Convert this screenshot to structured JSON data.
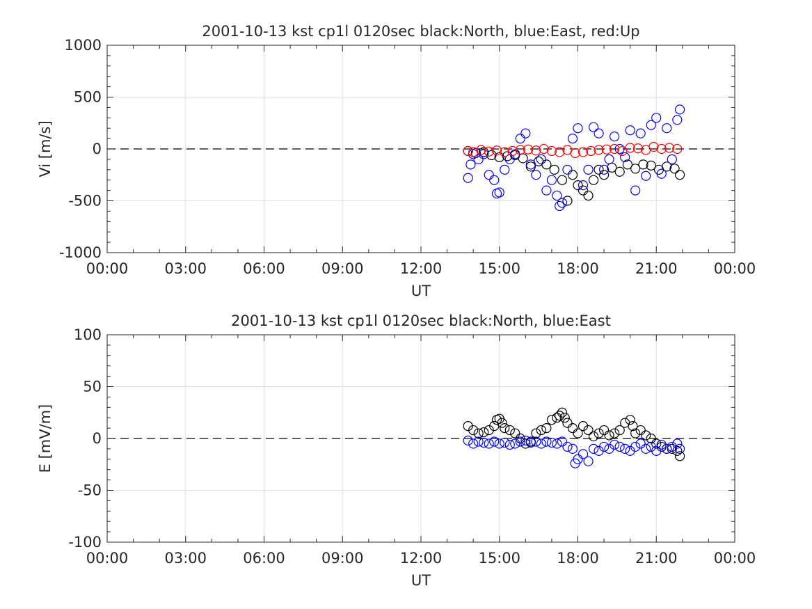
{
  "chart_data": [
    {
      "type": "scatter",
      "title": "2001-10-13 kst cp1l 0120sec black:North, blue:East, red:Up",
      "xlabel": "UT",
      "ylabel": "Vi [m/s]",
      "xlim": [
        "00:00",
        "24:00"
      ],
      "ylim": [
        -1000,
        1000
      ],
      "xticks": [
        "00:00",
        "03:00",
        "06:00",
        "09:00",
        "12:00",
        "15:00",
        "18:00",
        "21:00",
        "00:00"
      ],
      "yticks": [
        "-1000",
        "-500",
        "0",
        "500",
        "1000"
      ],
      "grid": true,
      "reference_line": 0,
      "marker": "open-circle",
      "x_unit": "hours UT",
      "series": [
        {
          "color": "#000000",
          "x": [
            13.8,
            14.1,
            14.4,
            14.7,
            15.0,
            15.3,
            15.6,
            15.9,
            16.2,
            16.5,
            16.8,
            17.1,
            17.4,
            17.6,
            17.8,
            18.0,
            18.2,
            18.4,
            18.6,
            18.8,
            19.0,
            19.3,
            19.6,
            19.9,
            20.2,
            20.5,
            20.8,
            21.1,
            21.4,
            21.7,
            21.9
          ],
          "y": [
            -20,
            -40,
            -30,
            -60,
            -80,
            -70,
            -60,
            -90,
            -170,
            -120,
            -150,
            -200,
            -300,
            -500,
            -250,
            -350,
            -400,
            -450,
            -300,
            -200,
            -250,
            -180,
            -220,
            -150,
            -190,
            -150,
            -160,
            -200,
            -170,
            -190,
            -250
          ]
        },
        {
          "color": "#0000ff",
          "x": [
            13.8,
            13.9,
            14.0,
            14.2,
            14.4,
            14.6,
            14.8,
            14.9,
            15.0,
            15.2,
            15.4,
            15.6,
            15.8,
            16.0,
            16.2,
            16.4,
            16.6,
            16.8,
            17.0,
            17.2,
            17.3,
            17.4,
            17.6,
            17.8,
            18.0,
            18.2,
            18.4,
            18.6,
            18.8,
            19.0,
            19.2,
            19.4,
            19.6,
            19.8,
            20.0,
            20.2,
            20.4,
            20.6,
            20.8,
            21.0,
            21.2,
            21.4,
            21.6,
            21.8,
            21.9
          ],
          "y": [
            -280,
            -150,
            -50,
            -100,
            -50,
            -250,
            -300,
            -430,
            -420,
            -200,
            -100,
            -50,
            100,
            150,
            -150,
            -250,
            -100,
            -400,
            -300,
            -450,
            -550,
            -520,
            -200,
            100,
            200,
            -350,
            -200,
            210,
            150,
            -200,
            -100,
            120,
            0,
            -80,
            180,
            -400,
            150,
            -260,
            230,
            300,
            -240,
            200,
            -100,
            280,
            380
          ]
        },
        {
          "color": "#ff0000",
          "x": [
            13.8,
            14.0,
            14.3,
            14.6,
            14.9,
            15.2,
            15.5,
            15.8,
            16.1,
            16.4,
            16.7,
            17.0,
            17.3,
            17.6,
            17.9,
            18.2,
            18.5,
            18.8,
            19.1,
            19.4,
            19.7,
            20.0,
            20.3,
            20.6,
            20.9,
            21.2,
            21.5,
            21.8
          ],
          "y": [
            -20,
            -30,
            -10,
            -25,
            -15,
            -30,
            -20,
            -10,
            -5,
            -15,
            0,
            -20,
            -30,
            -10,
            -40,
            -30,
            -20,
            -10,
            -5,
            0,
            -20,
            10,
            5,
            -10,
            20,
            0,
            10,
            0
          ]
        }
      ]
    },
    {
      "type": "scatter",
      "title": "2001-10-13 kst cp1l 0120sec black:North, blue:East",
      "xlabel": "UT",
      "ylabel": "E [mV/m]",
      "xlim": [
        "00:00",
        "24:00"
      ],
      "ylim": [
        -100,
        100
      ],
      "xticks": [
        "00:00",
        "03:00",
        "06:00",
        "09:00",
        "12:00",
        "15:00",
        "18:00",
        "21:00",
        "00:00"
      ],
      "yticks": [
        "-100",
        "-50",
        "0",
        "50",
        "100"
      ],
      "grid": true,
      "reference_line": 0,
      "marker": "open-circle",
      "x_unit": "hours UT",
      "series": [
        {
          "color": "#000000",
          "x": [
            13.8,
            14.0,
            14.2,
            14.4,
            14.6,
            14.8,
            14.9,
            15.0,
            15.1,
            15.2,
            15.4,
            15.6,
            15.8,
            16.0,
            16.2,
            16.4,
            16.6,
            16.8,
            17.0,
            17.2,
            17.3,
            17.4,
            17.5,
            17.6,
            17.8,
            18.0,
            18.2,
            18.4,
            18.6,
            18.8,
            19.0,
            19.2,
            19.4,
            19.6,
            19.8,
            20.0,
            20.1,
            20.2,
            20.4,
            20.6,
            20.8,
            21.0,
            21.2,
            21.4,
            21.6,
            21.8,
            21.9
          ],
          "y": [
            12,
            8,
            5,
            6,
            8,
            12,
            18,
            19,
            15,
            10,
            8,
            5,
            0,
            -5,
            -3,
            5,
            8,
            10,
            18,
            20,
            22,
            25,
            20,
            15,
            10,
            5,
            12,
            8,
            2,
            5,
            8,
            3,
            5,
            8,
            15,
            18,
            12,
            5,
            8,
            3,
            0,
            -5,
            -8,
            -10,
            -10,
            -12,
            -17
          ]
        },
        {
          "color": "#0000ff",
          "x": [
            13.8,
            14.0,
            14.2,
            14.4,
            14.6,
            14.8,
            15.0,
            15.2,
            15.4,
            15.6,
            15.8,
            16.0,
            16.2,
            16.4,
            16.6,
            16.8,
            17.0,
            17.2,
            17.4,
            17.6,
            17.8,
            17.9,
            18.0,
            18.2,
            18.4,
            18.6,
            18.8,
            19.0,
            19.2,
            19.4,
            19.6,
            19.8,
            20.0,
            20.2,
            20.4,
            20.6,
            20.8,
            21.0,
            21.2,
            21.4,
            21.6,
            21.8,
            21.9
          ],
          "y": [
            -2,
            -5,
            -3,
            -4,
            -5,
            -3,
            -5,
            -4,
            -6,
            -5,
            -3,
            -2,
            -4,
            -3,
            -5,
            -3,
            -4,
            -5,
            -3,
            -8,
            -10,
            -24,
            -20,
            -15,
            -22,
            -10,
            -12,
            -8,
            -10,
            -6,
            -8,
            -10,
            -12,
            -8,
            -5,
            -10,
            -8,
            -12,
            -6,
            -10,
            -8,
            -5,
            -10
          ]
        }
      ]
    }
  ]
}
